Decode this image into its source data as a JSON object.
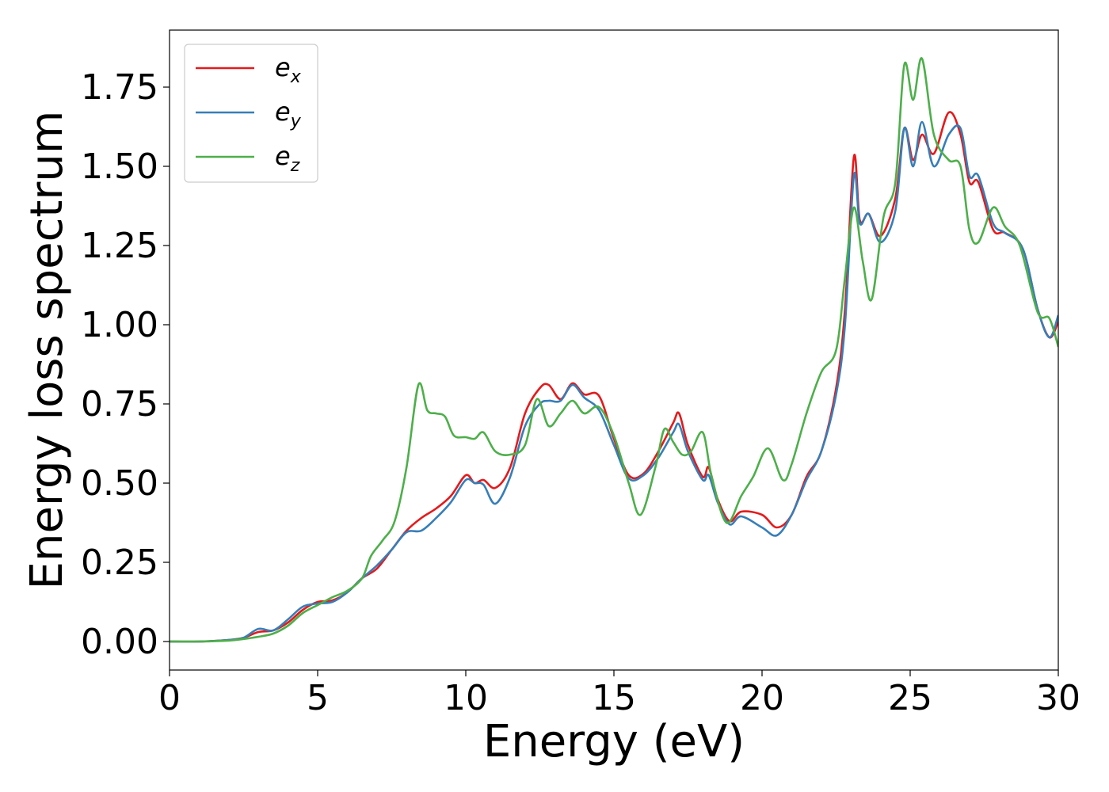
{
  "chart_data": {
    "type": "line",
    "xlabel": "Energy (eV)",
    "ylabel": "Energy loss spectrum",
    "xlim": [
      0,
      30
    ],
    "ylim": [
      -0.09,
      1.93
    ],
    "xticks": [
      0,
      5,
      10,
      15,
      20,
      25,
      30
    ],
    "xtick_labels": [
      "0",
      "5",
      "10",
      "15",
      "20",
      "25",
      "30"
    ],
    "yticks": [
      0.0,
      0.25,
      0.5,
      0.75,
      1.0,
      1.25,
      1.5,
      1.75
    ],
    "ytick_labels": [
      "0.00",
      "0.25",
      "0.50",
      "0.75",
      "1.00",
      "1.25",
      "1.50",
      "1.75"
    ],
    "grid": false,
    "legend_position": "top-left",
    "series": [
      {
        "name": "e_x",
        "legend_base": "e",
        "legend_sub": "x",
        "color": "#e41a1c",
        "points": [
          [
            0,
            0
          ],
          [
            1,
            0
          ],
          [
            2,
            0.005
          ],
          [
            2.5,
            0.012
          ],
          [
            3,
            0.03
          ],
          [
            3.5,
            0.035
          ],
          [
            4,
            0.06
          ],
          [
            4.5,
            0.1
          ],
          [
            5,
            0.125
          ],
          [
            5.5,
            0.13
          ],
          [
            6,
            0.155
          ],
          [
            6.5,
            0.2
          ],
          [
            7,
            0.23
          ],
          [
            7.5,
            0.29
          ],
          [
            8,
            0.35
          ],
          [
            8.5,
            0.39
          ],
          [
            9,
            0.42
          ],
          [
            9.5,
            0.46
          ],
          [
            10,
            0.525
          ],
          [
            10.3,
            0.5
          ],
          [
            10.6,
            0.51
          ],
          [
            11,
            0.485
          ],
          [
            11.5,
            0.55
          ],
          [
            12,
            0.72
          ],
          [
            12.5,
            0.8
          ],
          [
            12.8,
            0.81
          ],
          [
            13.2,
            0.765
          ],
          [
            13.6,
            0.815
          ],
          [
            14,
            0.78
          ],
          [
            14.5,
            0.775
          ],
          [
            15,
            0.64
          ],
          [
            15.5,
            0.525
          ],
          [
            16,
            0.53
          ],
          [
            16.5,
            0.6
          ],
          [
            17,
            0.69
          ],
          [
            17.2,
            0.72
          ],
          [
            17.5,
            0.62
          ],
          [
            18,
            0.52
          ],
          [
            18.2,
            0.55
          ],
          [
            18.5,
            0.45
          ],
          [
            18.9,
            0.38
          ],
          [
            19.3,
            0.41
          ],
          [
            20,
            0.4
          ],
          [
            20.5,
            0.36
          ],
          [
            21,
            0.4
          ],
          [
            21.5,
            0.52
          ],
          [
            22,
            0.6
          ],
          [
            22.5,
            0.8
          ],
          [
            22.8,
            1.05
          ],
          [
            23.1,
            1.53
          ],
          [
            23.3,
            1.33
          ],
          [
            23.6,
            1.35
          ],
          [
            24,
            1.28
          ],
          [
            24.5,
            1.4
          ],
          [
            24.8,
            1.62
          ],
          [
            25.1,
            1.52
          ],
          [
            25.4,
            1.6
          ],
          [
            25.8,
            1.54
          ],
          [
            26.3,
            1.67
          ],
          [
            26.7,
            1.6
          ],
          [
            27,
            1.45
          ],
          [
            27.3,
            1.45
          ],
          [
            27.8,
            1.3
          ],
          [
            28.2,
            1.29
          ],
          [
            28.8,
            1.24
          ],
          [
            29.3,
            1.05
          ],
          [
            29.7,
            0.96
          ],
          [
            30,
            1.01
          ]
        ]
      },
      {
        "name": "e_y",
        "legend_base": "e",
        "legend_sub": "y",
        "color": "#377eb8",
        "points": [
          [
            0,
            0
          ],
          [
            1,
            0
          ],
          [
            2,
            0.005
          ],
          [
            2.5,
            0.012
          ],
          [
            3,
            0.04
          ],
          [
            3.5,
            0.035
          ],
          [
            4,
            0.07
          ],
          [
            4.5,
            0.11
          ],
          [
            5,
            0.12
          ],
          [
            5.5,
            0.125
          ],
          [
            6,
            0.155
          ],
          [
            6.5,
            0.2
          ],
          [
            7,
            0.24
          ],
          [
            7.5,
            0.29
          ],
          [
            8,
            0.345
          ],
          [
            8.5,
            0.35
          ],
          [
            9,
            0.39
          ],
          [
            9.5,
            0.44
          ],
          [
            10,
            0.51
          ],
          [
            10.3,
            0.5
          ],
          [
            10.6,
            0.495
          ],
          [
            11,
            0.435
          ],
          [
            11.5,
            0.52
          ],
          [
            12,
            0.68
          ],
          [
            12.5,
            0.75
          ],
          [
            12.8,
            0.76
          ],
          [
            13.2,
            0.76
          ],
          [
            13.6,
            0.81
          ],
          [
            14,
            0.77
          ],
          [
            14.5,
            0.73
          ],
          [
            15,
            0.62
          ],
          [
            15.5,
            0.515
          ],
          [
            16,
            0.525
          ],
          [
            16.5,
            0.58
          ],
          [
            17,
            0.66
          ],
          [
            17.2,
            0.685
          ],
          [
            17.5,
            0.6
          ],
          [
            18,
            0.51
          ],
          [
            18.2,
            0.525
          ],
          [
            18.5,
            0.44
          ],
          [
            18.9,
            0.37
          ],
          [
            19.3,
            0.395
          ],
          [
            20,
            0.36
          ],
          [
            20.5,
            0.335
          ],
          [
            21,
            0.4
          ],
          [
            21.5,
            0.51
          ],
          [
            22,
            0.6
          ],
          [
            22.5,
            0.78
          ],
          [
            22.8,
            1.0
          ],
          [
            23.1,
            1.47
          ],
          [
            23.3,
            1.32
          ],
          [
            23.6,
            1.35
          ],
          [
            24,
            1.26
          ],
          [
            24.5,
            1.36
          ],
          [
            24.8,
            1.62
          ],
          [
            25.1,
            1.5
          ],
          [
            25.4,
            1.64
          ],
          [
            25.8,
            1.5
          ],
          [
            26.3,
            1.6
          ],
          [
            26.7,
            1.62
          ],
          [
            27,
            1.47
          ],
          [
            27.3,
            1.47
          ],
          [
            27.8,
            1.32
          ],
          [
            28.2,
            1.29
          ],
          [
            28.8,
            1.24
          ],
          [
            29.3,
            1.05
          ],
          [
            29.7,
            0.96
          ],
          [
            30,
            1.03
          ]
        ]
      },
      {
        "name": "e_z",
        "legend_base": "e",
        "legend_sub": "z",
        "color": "#4daf4a",
        "points": [
          [
            0,
            0
          ],
          [
            1,
            0
          ],
          [
            2,
            0.003
          ],
          [
            2.5,
            0.008
          ],
          [
            3,
            0.015
          ],
          [
            3.5,
            0.025
          ],
          [
            4,
            0.05
          ],
          [
            4.5,
            0.09
          ],
          [
            5,
            0.115
          ],
          [
            5.5,
            0.14
          ],
          [
            6,
            0.16
          ],
          [
            6.5,
            0.2
          ],
          [
            6.8,
            0.27
          ],
          [
            7.2,
            0.32
          ],
          [
            7.6,
            0.38
          ],
          [
            8,
            0.55
          ],
          [
            8.4,
            0.81
          ],
          [
            8.7,
            0.73
          ],
          [
            9,
            0.72
          ],
          [
            9.3,
            0.71
          ],
          [
            9.6,
            0.65
          ],
          [
            10,
            0.645
          ],
          [
            10.3,
            0.64
          ],
          [
            10.6,
            0.66
          ],
          [
            11,
            0.6
          ],
          [
            11.5,
            0.59
          ],
          [
            12,
            0.62
          ],
          [
            12.4,
            0.765
          ],
          [
            12.8,
            0.68
          ],
          [
            13.2,
            0.72
          ],
          [
            13.6,
            0.76
          ],
          [
            14,
            0.72
          ],
          [
            14.5,
            0.74
          ],
          [
            15,
            0.65
          ],
          [
            15.5,
            0.5
          ],
          [
            15.9,
            0.4
          ],
          [
            16.4,
            0.55
          ],
          [
            16.7,
            0.67
          ],
          [
            17,
            0.63
          ],
          [
            17.3,
            0.59
          ],
          [
            17.6,
            0.6
          ],
          [
            18,
            0.66
          ],
          [
            18.3,
            0.52
          ],
          [
            18.8,
            0.375
          ],
          [
            19.3,
            0.46
          ],
          [
            19.7,
            0.52
          ],
          [
            20.2,
            0.61
          ],
          [
            20.7,
            0.51
          ],
          [
            21,
            0.56
          ],
          [
            21.5,
            0.72
          ],
          [
            22,
            0.85
          ],
          [
            22.5,
            0.92
          ],
          [
            22.8,
            1.15
          ],
          [
            23.1,
            1.37
          ],
          [
            23.4,
            1.2
          ],
          [
            23.7,
            1.08
          ],
          [
            24.1,
            1.34
          ],
          [
            24.5,
            1.45
          ],
          [
            24.8,
            1.82
          ],
          [
            25.1,
            1.71
          ],
          [
            25.4,
            1.84
          ],
          [
            25.8,
            1.6
          ],
          [
            26.3,
            1.52
          ],
          [
            26.7,
            1.5
          ],
          [
            27,
            1.3
          ],
          [
            27.3,
            1.26
          ],
          [
            27.8,
            1.37
          ],
          [
            28.2,
            1.31
          ],
          [
            28.7,
            1.25
          ],
          [
            29.3,
            1.04
          ],
          [
            29.7,
            1.02
          ],
          [
            30,
            0.93
          ]
        ]
      }
    ]
  }
}
